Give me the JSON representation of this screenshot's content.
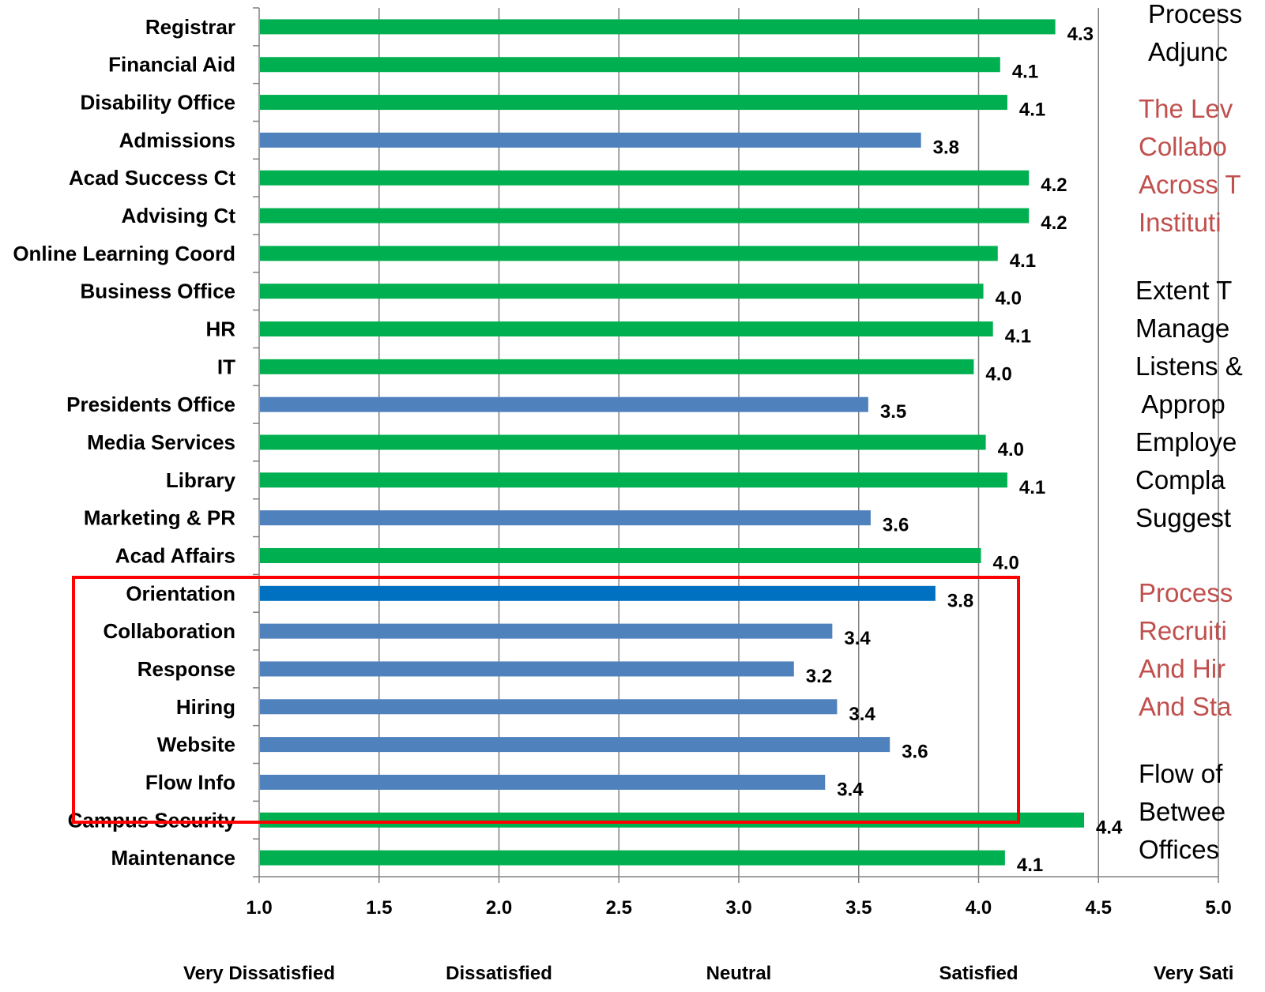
{
  "colors": {
    "green": "#00b050",
    "blue": "#4f81bd",
    "dark_blue": "#0070c0",
    "highlight_box": "#ff0000",
    "note_red": "#c0504d",
    "gridline": "#808080"
  },
  "chart_data": {
    "type": "bar",
    "orientation": "horizontal",
    "categories": [
      "Registrar",
      "Financial Aid",
      "Disability Office",
      "Admissions",
      "Acad Success Ct",
      "Advising Ct",
      "Online Learning Coord",
      "Business Office",
      "HR",
      "IT",
      "Presidents Office",
      "Media Services",
      "Library",
      "Marketing & PR",
      "Acad Affairs",
      "Orientation",
      "Collaboration",
      "Response",
      "Hiring",
      "Website",
      "Flow Info",
      "Campus Security",
      "Maintenance"
    ],
    "values": [
      4.32,
      4.09,
      4.12,
      3.76,
      4.21,
      4.21,
      4.08,
      4.02,
      4.06,
      3.98,
      3.54,
      4.03,
      4.12,
      3.55,
      4.01,
      3.82,
      3.39,
      3.23,
      3.41,
      3.63,
      3.36,
      4.44,
      4.11
    ],
    "value_labels": [
      "4.3",
      "4.1",
      "4.1",
      "3.8",
      "4.2",
      "4.2",
      "4.1",
      "4.0",
      "4.1",
      "4.0",
      "3.5",
      "4.0",
      "4.1",
      "3.6",
      "4.0",
      "3.8",
      "3.4",
      "3.2",
      "3.4",
      "3.6",
      "3.4",
      "4.4",
      "4.1"
    ],
    "bar_colors": [
      "green",
      "green",
      "green",
      "blue",
      "green",
      "green",
      "green",
      "green",
      "green",
      "green",
      "blue",
      "green",
      "green",
      "blue",
      "green",
      "dark_blue",
      "blue",
      "blue",
      "blue",
      "blue",
      "blue",
      "green",
      "green"
    ],
    "xlim": [
      1.0,
      5.0
    ],
    "x_ticks": [
      "1.0",
      "1.5",
      "2.0",
      "2.5",
      "3.0",
      "3.5",
      "4.0",
      "4.5",
      "5.0"
    ],
    "rating_labels": [
      "Very Dissatisfied",
      "Dissatisfied",
      "Neutral",
      "Satisfied",
      "Very Sati"
    ],
    "grid": "vertical",
    "highlighted_categories": [
      "Orientation",
      "Collaboration",
      "Response",
      "Hiring",
      "Website",
      "Flow Info"
    ]
  },
  "notes": [
    {
      "color": "black",
      "lines": [
        "Process",
        "Adjunc"
      ]
    },
    {
      "color": "red",
      "lines": [
        "The Lev",
        "Collabo",
        "Across T",
        "Instituti"
      ]
    },
    {
      "color": "black",
      "lines": [
        "Extent T",
        "Manage",
        "Listens &",
        " Approp",
        "Employe",
        "Compla",
        "Suggest"
      ]
    },
    {
      "color": "red",
      "lines": [
        "Process",
        "Recruiti",
        "And Hir",
        "And Sta"
      ]
    },
    {
      "color": "black",
      "lines": [
        "Flow of",
        "Betwee",
        "Offices"
      ]
    }
  ]
}
